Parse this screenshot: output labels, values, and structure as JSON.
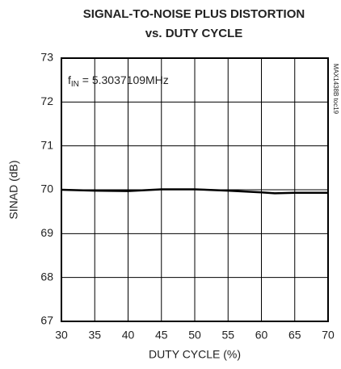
{
  "chart_data": {
    "type": "line",
    "title": [
      "SIGNAL-TO-NOISE PLUS DISTORTION",
      "vs. DUTY CYCLE"
    ],
    "x_label": "DUTY CYCLE (%)",
    "y_label": "SINAD (dB)",
    "annotation": {
      "base": "f",
      "sub": "IN",
      "rest": " = 5.3037109MHz"
    },
    "figure_id": "MAX1438B toc19",
    "x": [
      30,
      35,
      40,
      45,
      50,
      55,
      60,
      62,
      65,
      70
    ],
    "values": [
      70.0,
      69.98,
      69.97,
      70.01,
      70.01,
      69.98,
      69.94,
      69.92,
      69.93,
      69.93
    ],
    "color": "#000000",
    "xlim": [
      30,
      70
    ],
    "xticks": [
      30,
      35,
      40,
      45,
      50,
      55,
      60,
      65,
      70
    ],
    "ylim": [
      67,
      73
    ],
    "yticks": [
      67,
      68,
      69,
      70,
      71,
      72,
      73
    ],
    "grid": true
  }
}
